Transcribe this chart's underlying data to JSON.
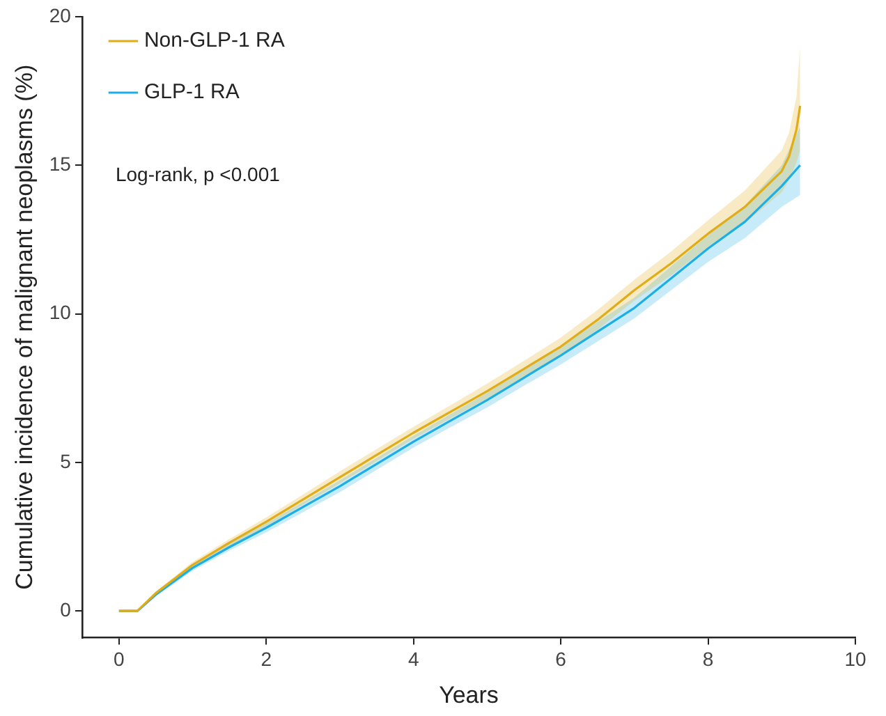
{
  "chart_data": {
    "type": "line",
    "xlabel": "Years",
    "ylabel": "Cumulative incidence of malignant neoplasms (%)",
    "annotations": [
      "Log-rank, p <0.001"
    ],
    "xlim": [
      -0.5,
      10
    ],
    "xticks": [
      0,
      2,
      4,
      6,
      8,
      10
    ],
    "ylim": [
      -0.9,
      20
    ],
    "yticks": [
      0,
      5,
      10,
      15,
      20
    ],
    "grid": false,
    "legend": "top left",
    "line_style": "solid",
    "series": [
      {
        "name": "Non-GLP-1 RA",
        "color": "#e0ac18",
        "x": [
          0,
          0.25,
          0.5,
          1,
          1.5,
          2,
          2.5,
          3,
          3.5,
          4,
          4.5,
          5,
          5.5,
          6,
          6.5,
          7,
          7.5,
          8,
          8.5,
          9,
          9.1,
          9.2,
          9.25
        ],
        "values": [
          0,
          0,
          0.6,
          1.55,
          2.3,
          3.0,
          3.75,
          4.5,
          5.25,
          6.0,
          6.7,
          7.4,
          8.15,
          8.9,
          9.8,
          10.8,
          11.7,
          12.7,
          13.6,
          14.8,
          15.3,
          16.2,
          17
        ],
        "lower": [
          0,
          0,
          0.55,
          1.45,
          2.18,
          2.85,
          3.58,
          4.3,
          5.05,
          5.8,
          6.48,
          7.15,
          7.88,
          8.6,
          9.47,
          10.45,
          11.3,
          12.25,
          13.05,
          14.1,
          14.5,
          15.1,
          15.5
        ],
        "upper": [
          0,
          0,
          0.65,
          1.65,
          2.42,
          3.15,
          3.92,
          4.7,
          5.45,
          6.2,
          6.92,
          7.65,
          8.42,
          9.2,
          10.13,
          11.15,
          12.1,
          13.15,
          14.15,
          15.5,
          16.1,
          17.3,
          19
        ]
      },
      {
        "name": "GLP-1 RA",
        "color": "#1eaee6",
        "x": [
          0,
          0.25,
          0.5,
          1,
          1.5,
          2,
          2.5,
          3,
          3.5,
          4,
          4.5,
          5,
          5.5,
          6,
          6.5,
          7,
          7.5,
          8,
          8.5,
          9,
          9.25
        ],
        "values": [
          0,
          0,
          0.55,
          1.45,
          2.15,
          2.8,
          3.5,
          4.2,
          4.95,
          5.7,
          6.4,
          7.1,
          7.85,
          8.6,
          9.4,
          10.2,
          11.2,
          12.2,
          13.1,
          14.3,
          15
        ],
        "lower": [
          0,
          0,
          0.5,
          1.35,
          2.03,
          2.65,
          3.33,
          4.0,
          4.75,
          5.5,
          6.18,
          6.85,
          7.58,
          8.3,
          9.07,
          9.85,
          10.8,
          11.75,
          12.55,
          13.6,
          14
        ],
        "upper": [
          0,
          0,
          0.6,
          1.55,
          2.27,
          2.95,
          3.67,
          4.4,
          5.15,
          5.9,
          6.62,
          7.35,
          8.12,
          8.9,
          9.73,
          10.55,
          11.6,
          12.65,
          13.65,
          15.0,
          16.3
        ]
      }
    ]
  }
}
